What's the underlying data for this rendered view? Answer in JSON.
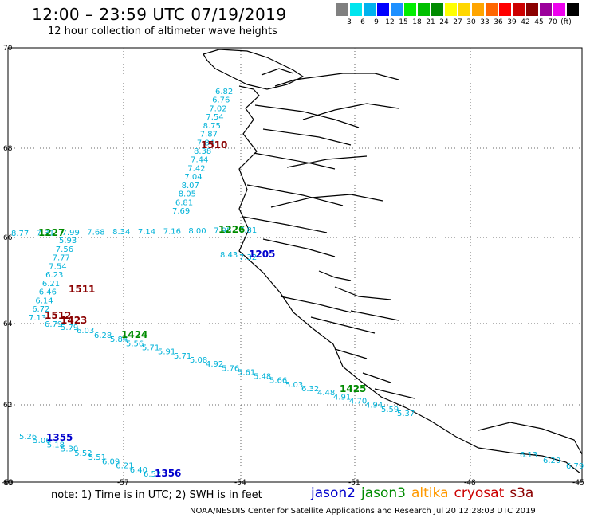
{
  "title": "12:00 – 23:59 UTC 07/19/2019",
  "subtitle": "12 hour collection of altimeter wave heights",
  "scale": {
    "colors": [
      "#808080",
      "#00e5ee",
      "#00b2ee",
      "#0000ff",
      "#1e90ff",
      "#00ee00",
      "#00c000",
      "#008b00",
      "#ffff00",
      "#ffd700",
      "#ffa500",
      "#ff6600",
      "#ff0000",
      "#cd0000",
      "#8b0000",
      "#9b009b",
      "#ee00ee",
      "#000000"
    ],
    "labels": [
      "3",
      "6",
      "9",
      "12",
      "15",
      "18",
      "21",
      "24",
      "27",
      "30",
      "33",
      "36",
      "39",
      "42",
      "45",
      "70",
      "(ft)"
    ]
  },
  "axes": {
    "lat_labels": [
      "70",
      "68",
      "66",
      "64",
      "62",
      "60"
    ],
    "lon_labels": [
      "-60",
      "-57",
      "-54",
      "-51",
      "-48",
      "-45"
    ]
  },
  "tracks": [
    {
      "name": "cryosat north track",
      "color": "#00b2d8",
      "values": [
        "6.82",
        "6.76",
        "7.02",
        "7.54",
        "8.75",
        "7.87",
        "7.84",
        "8.38",
        "7.44",
        "7.42",
        "7.04",
        "8.07",
        "8.05",
        "6.81",
        "7.69"
      ],
      "time": "1510",
      "time_color": "#8b0000"
    },
    {
      "name": "cryosat south track",
      "color": "#00b2d8",
      "values": [
        "5.93",
        "7.56",
        "7.77",
        "7.54",
        "6.23",
        "6.21",
        "6.46",
        "6.14",
        "6.72",
        "7.13"
      ],
      "time": "1511",
      "time_color": "#8b0000"
    },
    {
      "name": "jason3 crossing",
      "color": "#00b2d8",
      "values": [
        "8.77",
        "7.31",
        "7.99",
        "7.68",
        "8.34",
        "7.14",
        "7.16",
        "8.00",
        "7.95",
        "7.81"
      ],
      "time": "1227",
      "time_color": "#008b00",
      "time2": "1226"
    },
    {
      "name": "jason2 short",
      "color": "#00b2d8",
      "values": [
        "8.43",
        "7.32"
      ],
      "time": "1205",
      "time_color": "#0000cd"
    },
    {
      "name": "jason3 long track",
      "color": "#00b2d8",
      "values": [
        "6.28",
        "5.84",
        "5.56",
        "5.71",
        "5.91",
        "5.71",
        "5.08",
        "4.92",
        "5.76",
        "5.61",
        "5.48",
        "5.66",
        "5.03",
        "6.32",
        "4.48",
        "4.91",
        "4.70",
        "4.94",
        "5.59",
        "5.37"
      ],
      "time": "1424",
      "time_color": "#008b00",
      "time2": "1425"
    },
    {
      "name": "cryosat 1512",
      "color": "#00b2d8",
      "values": [
        "6.79",
        "5.79",
        "6.03"
      ],
      "time": "1512",
      "time_color": "#8b0000",
      "time2": "1423"
    },
    {
      "name": "jason2 southwest",
      "color": "#00b2d8",
      "values": [
        "5.26",
        "5.06",
        "5.18",
        "5.30",
        "5.52",
        "5.51",
        "6.09",
        "6.21",
        "6.40",
        "6.52"
      ],
      "time": "1355",
      "time_color": "#0000cd",
      "time2": "1356"
    },
    {
      "name": "southeast",
      "color": "#00b2d8",
      "values": [
        "6.13",
        "6.20",
        "6.79"
      ],
      "time": "",
      "time_color": "#008b00"
    }
  ],
  "note": "note:  1) Time is in UTC;  2) SWH is in feet",
  "legend": [
    {
      "label": "jason2",
      "color": "#0000cd"
    },
    {
      "label": "jason3",
      "color": "#008b00"
    },
    {
      "label": "altika",
      "color": "#ff9900"
    },
    {
      "label": "cryosat",
      "color": "#cc0000"
    },
    {
      "label": "s3a",
      "color": "#8b0000"
    }
  ],
  "footer": "NOAA/NESDIS Center for Satellite Applications and Research     Jul 20 12:28:03 UTC 2019"
}
